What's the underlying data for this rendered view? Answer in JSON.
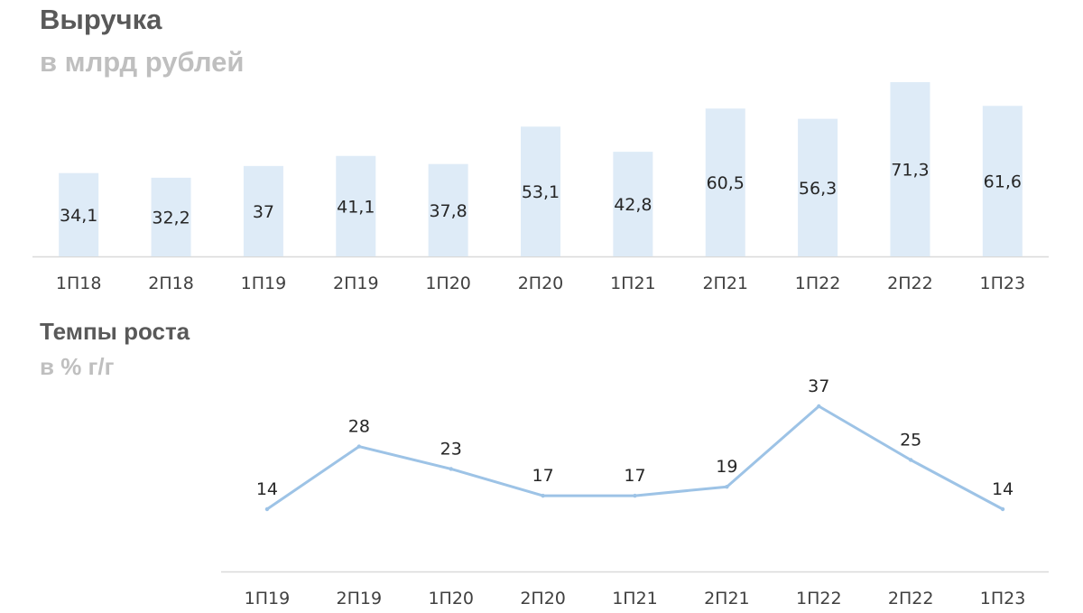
{
  "revenue": {
    "title": "Выручка",
    "subtitle": "в млрд рублей"
  },
  "growth": {
    "title": "Темпы роста",
    "subtitle": "в % г/г"
  },
  "colors": {
    "bar": "#deebf7",
    "line": "#9dc3e6",
    "axis": "#d9d9d9",
    "title": "#595959",
    "subtitle": "#bfbfbf",
    "label": "#262626"
  },
  "chart_data": [
    {
      "type": "bar",
      "title": "Выручка",
      "subtitle": "в млрд рублей",
      "categories": [
        "1П18",
        "2П18",
        "1П19",
        "2П19",
        "1П20",
        "2П20",
        "1П21",
        "2П21",
        "1П22",
        "2П22",
        "1П23"
      ],
      "values": [
        34.1,
        32.2,
        37,
        41.1,
        37.8,
        53.1,
        42.8,
        60.5,
        56.3,
        71.3,
        61.6
      ],
      "value_labels": [
        "34,1",
        "32,2",
        "37",
        "41,1",
        "37,8",
        "53,1",
        "42,8",
        "60,5",
        "56,3",
        "71,3",
        "61,6"
      ],
      "xlabel": "",
      "ylabel": "",
      "grid": false,
      "legend": "none"
    },
    {
      "type": "line",
      "title": "Темпы роста",
      "subtitle": "в % г/г",
      "categories": [
        "1П19",
        "2П19",
        "1П20",
        "2П20",
        "1П21",
        "2П21",
        "1П22",
        "2П22",
        "1П23"
      ],
      "values": [
        14,
        28,
        23,
        17,
        17,
        19,
        37,
        25,
        14
      ],
      "value_labels": [
        "14",
        "28",
        "23",
        "17",
        "17",
        "19",
        "37",
        "25",
        "14"
      ],
      "xlabel": "",
      "ylabel": "",
      "grid": false,
      "legend": "none"
    }
  ]
}
